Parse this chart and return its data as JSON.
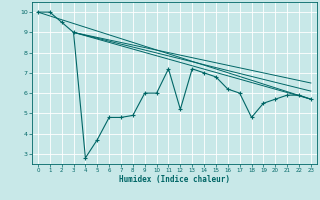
{
  "xlabel": "Humidex (Indice chaleur)",
  "bg_color": "#c8e8e8",
  "line_color": "#006666",
  "grid_color": "#e0f0f0",
  "xlim": [
    -0.5,
    23.5
  ],
  "ylim": [
    2.5,
    10.5
  ],
  "yticks": [
    3,
    4,
    5,
    6,
    7,
    8,
    9,
    10
  ],
  "xticks": [
    0,
    1,
    2,
    3,
    4,
    5,
    6,
    7,
    8,
    9,
    10,
    11,
    12,
    13,
    14,
    15,
    16,
    17,
    18,
    19,
    20,
    21,
    22,
    23
  ],
  "series": [
    [
      0,
      10.0
    ],
    [
      1,
      10.0
    ],
    [
      2,
      9.5
    ],
    [
      3,
      9.0
    ],
    [
      4,
      2.8
    ],
    [
      5,
      3.7
    ],
    [
      6,
      4.8
    ],
    [
      7,
      4.8
    ],
    [
      8,
      4.9
    ],
    [
      9,
      6.0
    ],
    [
      10,
      6.0
    ],
    [
      11,
      7.2
    ],
    [
      12,
      5.2
    ],
    [
      13,
      7.2
    ],
    [
      14,
      7.0
    ],
    [
      15,
      6.8
    ],
    [
      16,
      6.2
    ],
    [
      17,
      6.0
    ],
    [
      18,
      4.8
    ],
    [
      19,
      5.5
    ],
    [
      20,
      5.7
    ],
    [
      21,
      5.9
    ],
    [
      22,
      5.9
    ],
    [
      23,
      5.7
    ]
  ],
  "smooth_lines": [
    [
      [
        0,
        10.0
      ],
      [
        23,
        5.7
      ]
    ],
    [
      [
        3,
        9.0
      ],
      [
        23,
        5.7
      ]
    ],
    [
      [
        3,
        9.0
      ],
      [
        23,
        6.1
      ]
    ],
    [
      [
        3,
        9.0
      ],
      [
        23,
        6.5
      ]
    ]
  ]
}
